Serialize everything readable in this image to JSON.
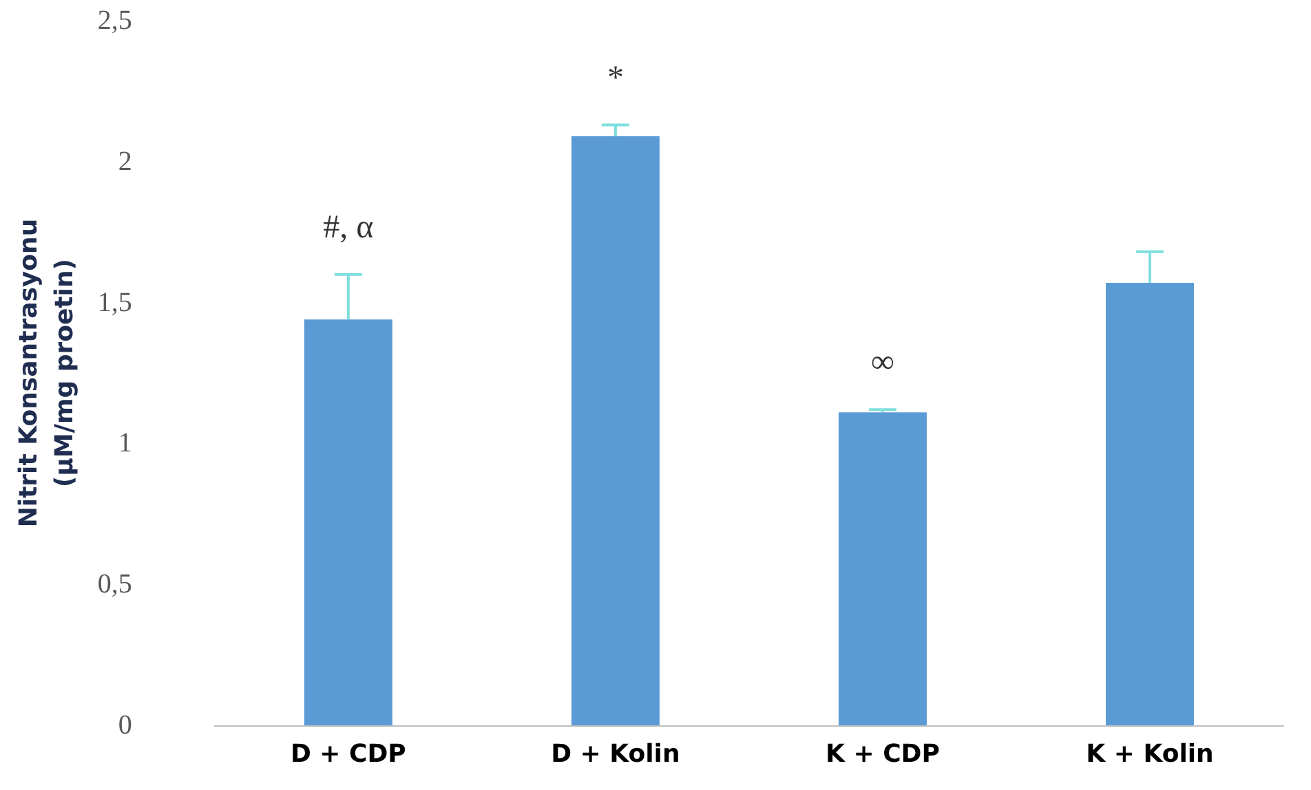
{
  "chart_data": {
    "type": "bar",
    "categories": [
      "D + CDP",
      "D + Kolin",
      "K + CDP",
      "K + Kolin"
    ],
    "values": [
      1.44,
      2.09,
      1.11,
      1.57
    ],
    "color": "#5b9bd5",
    "errors": [
      [
        1.44,
        1.6
      ],
      [
        2.09,
        2.13
      ],
      [
        1.11,
        1.12
      ],
      [
        1.57,
        1.68
      ]
    ],
    "ylabel": "Nitrit Konsantrasyonu\n(µM/mg proetin)",
    "ylim": [
      0,
      2.5
    ],
    "yticks": [
      0,
      {
        "value": 0.5,
        "label": "0,5"
      },
      1,
      {
        "value": 1.5,
        "label": "1,5"
      },
      2,
      {
        "value": 2.5,
        "label": "2,5"
      }
    ],
    "annotations": [
      "#, α",
      "*",
      "∞"
    ],
    "grid": false
  }
}
